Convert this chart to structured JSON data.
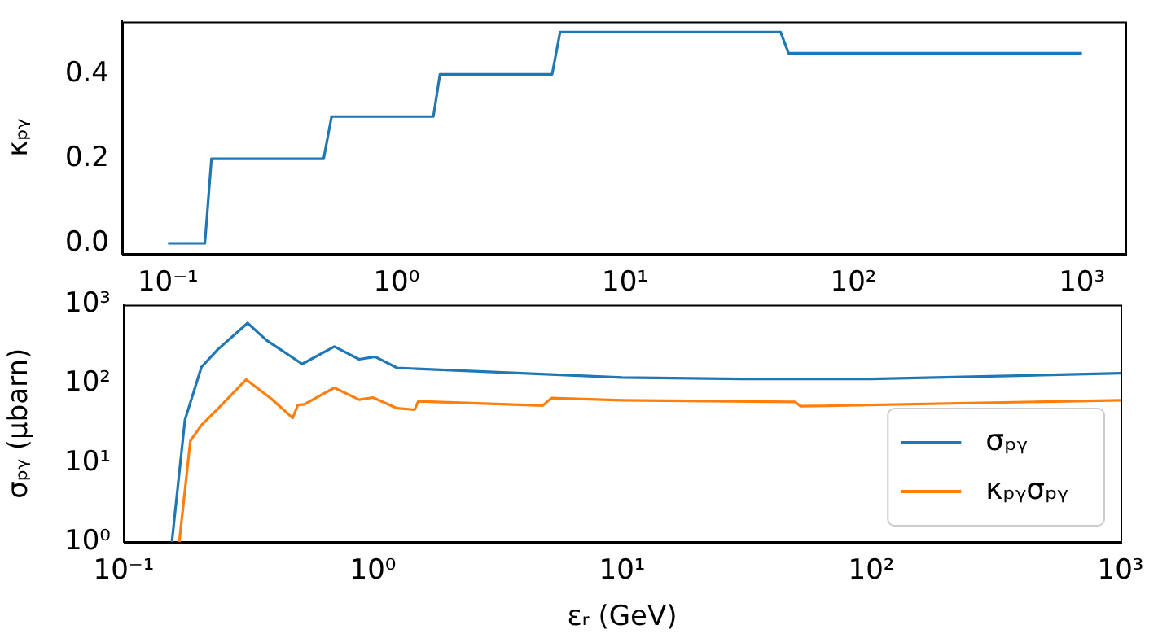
{
  "chart_data": [
    {
      "type": "line",
      "ylabel": "κₚᵧ",
      "xlim": [
        0.063,
        1550
      ],
      "ylim": [
        -0.025,
        0.525
      ],
      "log": "x",
      "grid": false,
      "legend": false,
      "xticks": [
        {
          "value": 0.1,
          "label": "10⁻¹"
        },
        {
          "value": 1,
          "label": "10⁰"
        },
        {
          "value": 10,
          "label": "10¹"
        },
        {
          "value": 100,
          "label": "10²"
        },
        {
          "value": 1000,
          "label": "10³"
        }
      ],
      "yticks": [
        {
          "value": 0,
          "label": "0.0"
        },
        0.2,
        0.4
      ],
      "series": [
        {
          "color": "#1f77b4",
          "x": [
            0.1,
            0.145,
            0.155,
            0.48,
            0.52,
            1.45,
            1.55,
            4.8,
            5.2,
            48,
            52,
            1000
          ],
          "values": [
            0,
            0,
            0.2,
            0.2,
            0.3,
            0.3,
            0.4,
            0.4,
            0.5,
            0.5,
            0.45,
            0.45
          ]
        }
      ]
    },
    {
      "type": "line",
      "xlabel": "εᵣ (GeV)",
      "ylabel": "σₚᵧ (μbarn)",
      "xlim": [
        0.1,
        1000
      ],
      "ylim": [
        1,
        1000
      ],
      "log": "xy",
      "grid": false,
      "legend": "bottom right",
      "xticks": [
        {
          "value": 0.1,
          "label": "10⁻¹"
        },
        {
          "value": 1,
          "label": "10⁰"
        },
        {
          "value": 10,
          "label": "10¹"
        },
        {
          "value": 100,
          "label": "10²"
        },
        {
          "value": 1000,
          "label": "10³"
        }
      ],
      "yticks": [
        {
          "value": 1,
          "label": "10⁰"
        },
        {
          "value": 10,
          "label": "10¹"
        },
        {
          "value": 100,
          "label": "10²"
        },
        {
          "value": 1000,
          "label": "10³"
        }
      ],
      "series": [
        {
          "name": "σₚᵧ",
          "color": "#1f77b4",
          "x": [
            0.156,
            0.176,
            0.205,
            0.238,
            0.314,
            0.374,
            0.52,
            0.7,
            0.88,
            1.02,
            1.25,
            1.5,
            10,
            30,
            100,
            1000
          ],
          "values": [
            1,
            35,
            163,
            270,
            585,
            355,
            178,
            295,
            204,
            220,
            159,
            155,
            120,
            115,
            115,
            136
          ]
        },
        {
          "name": "κₚᵧσₚᵧ",
          "color": "#ff7f0e",
          "x": [
            0.167,
            0.185,
            0.205,
            0.238,
            0.31,
            0.39,
            0.476,
            0.5,
            0.53,
            0.7,
            0.88,
            1.0,
            1.25,
            1.47,
            1.52,
            4.8,
            5.2,
            10,
            49.5,
            52,
            1000
          ],
          "values": [
            1,
            19,
            30,
            48,
            113,
            65,
            37,
            54,
            55,
            89,
            63,
            67,
            49,
            47,
            60,
            53,
            66,
            62,
            59,
            52,
            62
          ]
        }
      ]
    }
  ]
}
